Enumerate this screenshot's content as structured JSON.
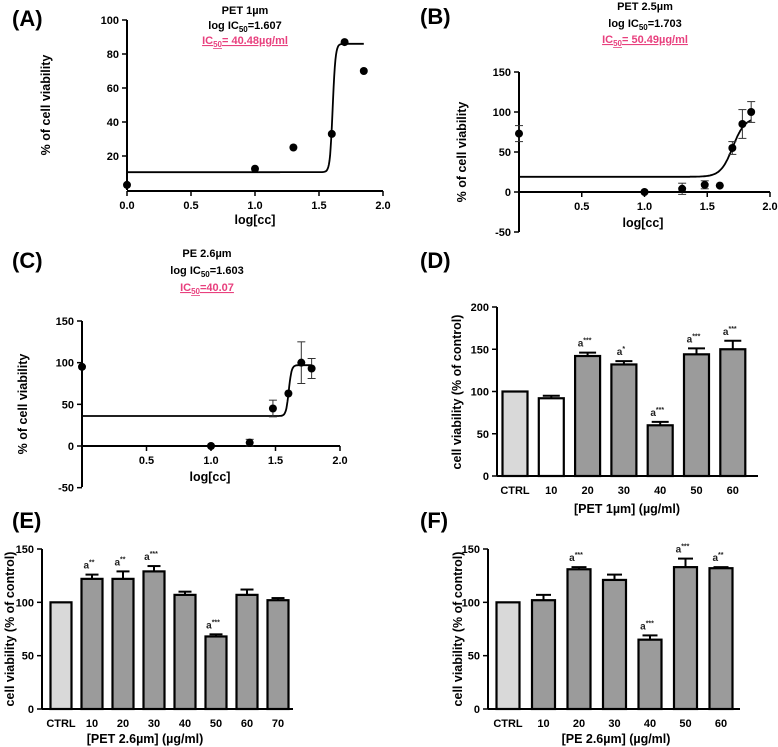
{
  "chart_data": [
    {
      "panel": "(A)",
      "type": "scatter",
      "title": [
        "PET 1µm",
        {
          "pre": "log IC",
          "sub": "50",
          "post": "=1.607"
        },
        {
          "pre": "IC",
          "sub": "50",
          "post": "= 40.48µg/ml"
        }
      ],
      "xlabel": "log[cc]",
      "ylabel": "% of cell viability",
      "xlim": [
        0,
        2
      ],
      "ylim": [
        0,
        100
      ],
      "xticks": [
        0,
        0.5,
        1,
        1.5,
        2
      ],
      "xtick_labels": [
        "0.0",
        "0.5",
        "1.0",
        "1.5",
        "2.0"
      ],
      "yticks": [
        20,
        40,
        60,
        80,
        100
      ],
      "ytick_labels": [
        "20",
        "40",
        "60",
        "80",
        "100"
      ],
      "points": [
        {
          "x": 0,
          "y": 3
        },
        {
          "x": 1,
          "y": 12.5
        },
        {
          "x": 1.3,
          "y": 25
        },
        {
          "x": 1.6,
          "y": 33
        },
        {
          "x": 1.7,
          "y": 87
        },
        {
          "x": 1.85,
          "y": 70
        }
      ],
      "fit": {
        "bottom": 10.5,
        "top": 86,
        "logIC50": 1.607,
        "hill": 40,
        "xrange": [
          0,
          1.85
        ]
      }
    },
    {
      "panel": "(B)",
      "type": "scatter",
      "title": [
        "PET 2.5µm",
        {
          "pre": "log IC",
          "sub": "50",
          "post": "=1.703"
        },
        {
          "pre": "IC",
          "sub": "50",
          "post": "= 50.49µg/ml"
        }
      ],
      "xlabel": "log[cc]",
      "ylabel": "% of cell viability",
      "xlim": [
        0,
        2
      ],
      "ylim": [
        -50,
        150
      ],
      "xticks": [
        0.5,
        1,
        1.5,
        2
      ],
      "xtick_labels": [
        "0.5",
        "1.0",
        "1.5",
        "2.0"
      ],
      "yticks": [
        -50,
        0,
        50,
        100,
        150
      ],
      "ytick_labels": [
        "-50",
        "0",
        "50",
        "100",
        "150"
      ],
      "points": [
        {
          "x": 0,
          "y": 73,
          "err": 10
        },
        {
          "x": 1,
          "y": 0,
          "err": 0
        },
        {
          "x": 1.3,
          "y": 4,
          "err": 7
        },
        {
          "x": 1.48,
          "y": 9,
          "err": 5
        },
        {
          "x": 1.6,
          "y": 8,
          "err": 0
        },
        {
          "x": 1.7,
          "y": 55,
          "err": 8
        },
        {
          "x": 1.78,
          "y": 85,
          "err": 18
        },
        {
          "x": 1.85,
          "y": 100,
          "err": 13
        }
      ],
      "fit": {
        "bottom": 19,
        "top": 93,
        "logIC50": 1.703,
        "hill": 9,
        "xrange": [
          0,
          1.85
        ]
      }
    },
    {
      "panel": "(C)",
      "type": "scatter",
      "title": [
        "PE 2.6µm",
        {
          "pre": "log IC",
          "sub": "50",
          "post": "=1.603"
        },
        {
          "pre": "IC",
          "sub": "50",
          "post": "=40.07"
        }
      ],
      "xlabel": "log[cc]",
      "ylabel": "% of cell viability",
      "xlim": [
        0,
        2
      ],
      "ylim": [
        -50,
        150
      ],
      "xticks": [
        0.5,
        1,
        1.5,
        2
      ],
      "xtick_labels": [
        "0.5",
        "1.0",
        "1.5",
        "2.0"
      ],
      "yticks": [
        -50,
        0,
        50,
        100,
        150
      ],
      "ytick_labels": [
        "-50",
        "0",
        "50",
        "100",
        "150"
      ],
      "points": [
        {
          "x": 0,
          "y": 95,
          "err": 0
        },
        {
          "x": 1,
          "y": 0,
          "err": 0
        },
        {
          "x": 1.3,
          "y": 4,
          "err": 4
        },
        {
          "x": 1.48,
          "y": 45,
          "err": 10
        },
        {
          "x": 1.6,
          "y": 63,
          "err": 0
        },
        {
          "x": 1.7,
          "y": 100,
          "err": 25
        },
        {
          "x": 1.78,
          "y": 93,
          "err": 12
        }
      ],
      "fit": {
        "bottom": 36,
        "top": 97,
        "logIC50": 1.603,
        "hill": 40,
        "xrange": [
          0,
          1.78
        ]
      }
    },
    {
      "panel": "(D)",
      "type": "bar",
      "xlabel": "[PET 1µm] (µg/ml)",
      "ylabel": "cell viability (% of control)",
      "ylim": [
        0,
        200
      ],
      "yticks": [
        0,
        50,
        100,
        150,
        200
      ],
      "ytick_labels": [
        "0",
        "50",
        "100",
        "150",
        "200"
      ],
      "categories": [
        "CTRL",
        "10",
        "20",
        "30",
        "40",
        "50",
        "60"
      ],
      "values": [
        100,
        92,
        142,
        132,
        60,
        144,
        150
      ],
      "errors": [
        0,
        3,
        4,
        4,
        4,
        7,
        10
      ],
      "colors": [
        "#d9d9d9",
        "#ffffff",
        "#9b9b9b",
        "#9b9b9b",
        "#9b9b9b",
        "#9b9b9b",
        "#9b9b9b"
      ],
      "annotations": [
        {
          "base": "",
          "sup": ""
        },
        {
          "base": "",
          "sup": ""
        },
        {
          "base": "a",
          "sup": "***"
        },
        {
          "base": "a",
          "sup": "*"
        },
        {
          "base": "a",
          "sup": "***"
        },
        {
          "base": "a",
          "sup": "***"
        },
        {
          "base": "a",
          "sup": "***"
        }
      ]
    },
    {
      "panel": "(E)",
      "type": "bar",
      "xlabel": "[PET 2.6µm] (µg/ml)",
      "ylabel": "cell viability (% of control)",
      "ylim": [
        0,
        150
      ],
      "yticks": [
        0,
        50,
        100,
        150
      ],
      "ytick_labels": [
        "0",
        "50",
        "100",
        "150"
      ],
      "categories": [
        "CTRL",
        "10",
        "20",
        "30",
        "40",
        "50",
        "60",
        "70"
      ],
      "values": [
        100,
        122,
        122,
        129,
        107,
        68,
        107,
        102
      ],
      "errors": [
        0,
        4,
        7,
        5,
        3,
        2,
        5,
        2
      ],
      "colors": [
        "#d9d9d9",
        "#9b9b9b",
        "#9b9b9b",
        "#9b9b9b",
        "#9b9b9b",
        "#9b9b9b",
        "#9b9b9b",
        "#9b9b9b"
      ],
      "annotations": [
        {
          "base": "",
          "sup": ""
        },
        {
          "base": "a",
          "sup": "**"
        },
        {
          "base": "a",
          "sup": "**"
        },
        {
          "base": "a",
          "sup": "***"
        },
        {
          "base": "",
          "sup": ""
        },
        {
          "base": "a",
          "sup": "***"
        },
        {
          "base": "",
          "sup": ""
        },
        {
          "base": "",
          "sup": ""
        }
      ]
    },
    {
      "panel": "(F)",
      "type": "bar",
      "xlabel": "[PE 2.6µm] (µg/ml)",
      "ylabel": "cell viability (% of control)",
      "ylim": [
        0,
        150
      ],
      "yticks": [
        0,
        50,
        100,
        150
      ],
      "ytick_labels": [
        "0",
        "50",
        "100",
        "150"
      ],
      "categories": [
        "CTRL",
        "10",
        "20",
        "30",
        "40",
        "50",
        "60"
      ],
      "values": [
        100,
        102,
        131,
        121,
        65,
        133,
        132
      ],
      "errors": [
        0,
        5,
        2,
        5,
        4,
        8,
        1
      ],
      "colors": [
        "#d9d9d9",
        "#9b9b9b",
        "#9b9b9b",
        "#9b9b9b",
        "#9b9b9b",
        "#9b9b9b",
        "#9b9b9b"
      ],
      "annotations": [
        {
          "base": "",
          "sup": ""
        },
        {
          "base": "",
          "sup": ""
        },
        {
          "base": "a",
          "sup": "***"
        },
        {
          "base": "",
          "sup": ""
        },
        {
          "base": "a",
          "sup": "***"
        },
        {
          "base": "a",
          "sup": "***"
        },
        {
          "base": "a",
          "sup": "**"
        }
      ]
    }
  ]
}
